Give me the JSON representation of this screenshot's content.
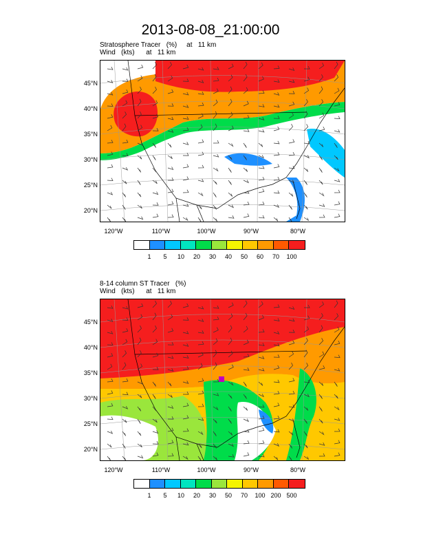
{
  "title": "2013-08-08_21:00:00",
  "panel1": {
    "line1": "Stratosphere Tracer   (%)     at   11 km",
    "line2": "Wind   (kts)      at   11 km",
    "lat_labels": [
      "45°N",
      "40°N",
      "35°N",
      "30°N",
      "25°N",
      "20°N"
    ],
    "lon_labels": [
      "120°W",
      "110°W",
      "100°W",
      "90°W",
      "80°W"
    ],
    "colorbar_labels": [
      "1",
      "5",
      "10",
      "20",
      "30",
      "40",
      "50",
      "60",
      "70",
      "100"
    ]
  },
  "panel2": {
    "line1": "8-14 column ST Tracer   (%)",
    "line2": "Wind   (kts)      at   11 km",
    "lat_labels": [
      "45°N",
      "40°N",
      "35°N",
      "30°N",
      "25°N",
      "20°N"
    ],
    "lon_labels": [
      "120°W",
      "110°W",
      "100°W",
      "90°W",
      "80°W"
    ],
    "colorbar_labels": [
      "1",
      "5",
      "10",
      "20",
      "30",
      "50",
      "70",
      "100",
      "200",
      "500"
    ]
  },
  "colorbar_colors": [
    "#ffffff",
    "#1e90ff",
    "#00c8ff",
    "#00e5c0",
    "#00dc4a",
    "#9ae63c",
    "#f5f500",
    "#ffc800",
    "#ff9a00",
    "#ff5a00",
    "#f51e1e"
  ]
}
